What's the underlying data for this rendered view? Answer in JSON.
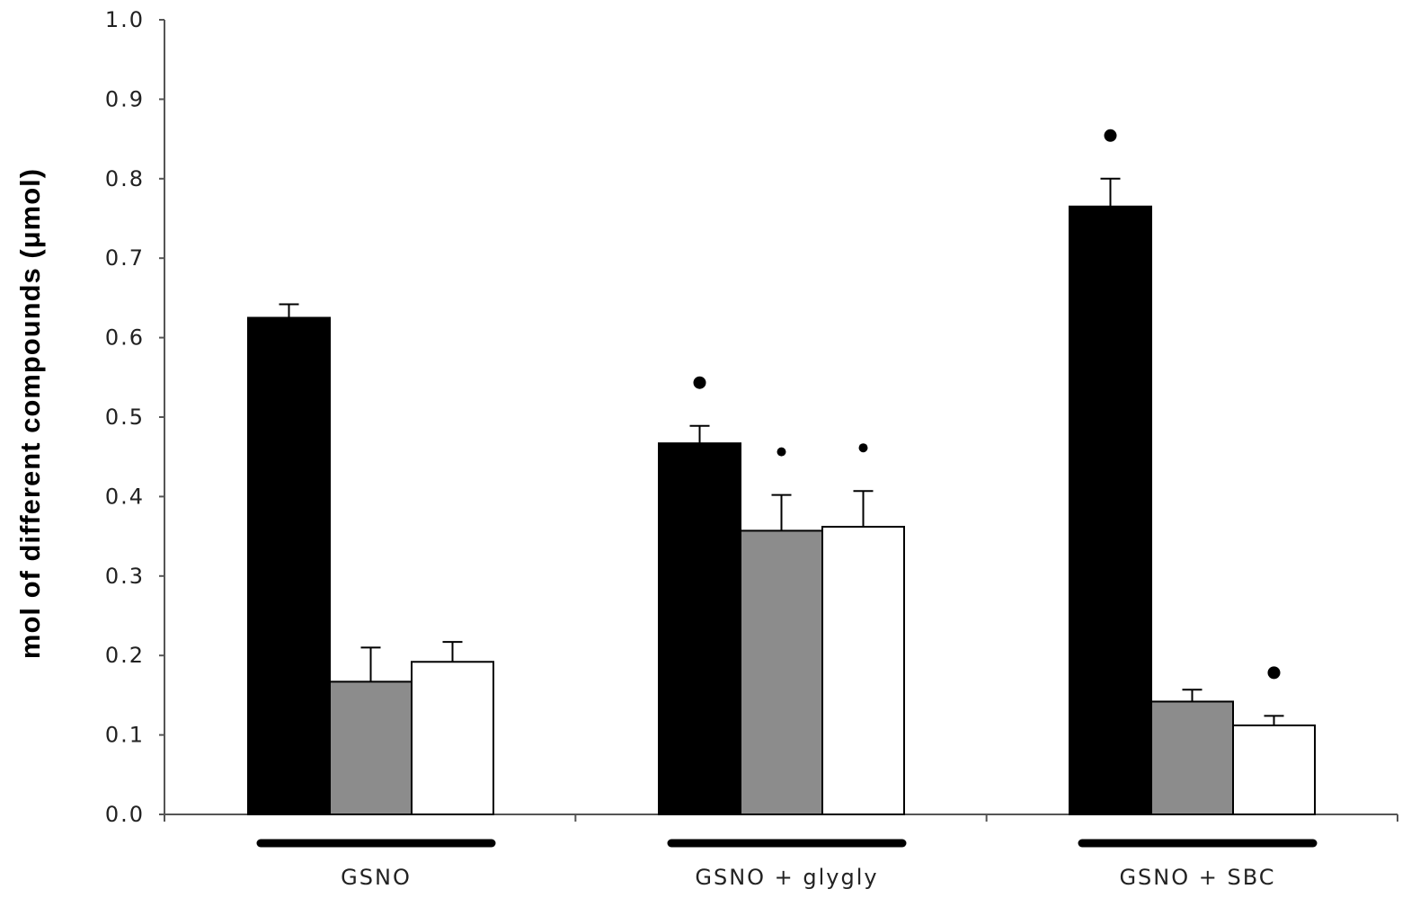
{
  "chart_data": {
    "type": "bar",
    "title": "",
    "xlabel": "",
    "ylabel": "mol of different compounds (μmol)",
    "ylim": [
      0,
      1.0
    ],
    "yticks": [
      "0.0",
      "0.1",
      "0.2",
      "0.3",
      "0.4",
      "0.5",
      "0.6",
      "0.7",
      "0.8",
      "0.9",
      "1.0"
    ],
    "grid": false,
    "legend": false,
    "categories": [
      "GSNO",
      "GSNO + glygly",
      "GSNO + SBC"
    ],
    "series": [
      {
        "color": "#000000",
        "values": [
          0.625,
          0.467,
          0.765
        ],
        "errors": [
          0.017,
          0.022,
          0.035
        ],
        "significant": [
          false,
          true,
          true
        ],
        "marker_sizes": [
          "",
          "large",
          "large"
        ]
      },
      {
        "color": "#8c8c8c",
        "values": [
          0.167,
          0.357,
          0.142
        ],
        "errors": [
          0.043,
          0.045,
          0.015
        ],
        "significant": [
          false,
          true,
          false
        ],
        "marker_sizes": [
          "",
          "small",
          ""
        ]
      },
      {
        "color": "#ffffff",
        "values": [
          0.192,
          0.362,
          0.112
        ],
        "errors": [
          0.025,
          0.045,
          0.012
        ],
        "significant": [
          false,
          true,
          true
        ],
        "marker_sizes": [
          "",
          "small",
          "large"
        ]
      }
    ]
  }
}
